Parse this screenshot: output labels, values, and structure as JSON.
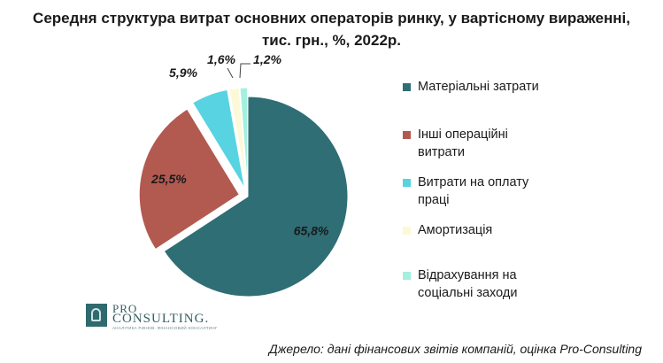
{
  "chart_data": {
    "type": "pie",
    "title_lines": [
      "Середня структура витрат основних операторів ринку, у вартісному вираженні,",
      "тис. грн., %, 2022р."
    ],
    "slices": [
      {
        "label": "Матеріальні затрати",
        "value": 65.8,
        "display": "65,8%",
        "color": "#2f6e75",
        "exploded": false
      },
      {
        "label": "Інші операційні витрати",
        "value": 25.5,
        "display": "25,5%",
        "color": "#b25a50",
        "exploded": true
      },
      {
        "label": "Витрати на оплату праці",
        "value": 5.9,
        "display": "5,9%",
        "color": "#57d3e2",
        "exploded": true
      },
      {
        "label": "Амортизація",
        "value": 1.6,
        "display": "1,6%",
        "color": "#fdf8d8",
        "exploded": true
      },
      {
        "label": "Відрахування на соціальні заходи",
        "value": 1.2,
        "display": "1,2%",
        "color": "#a3f0dd",
        "exploded": true
      }
    ],
    "legend_lines": [
      [
        "Матеріальні затрати"
      ],
      [
        "Інші операційні",
        "витрати"
      ],
      [
        "Витрати на оплату",
        "праці"
      ],
      [
        "Амортизація"
      ],
      [
        "Відрахування на",
        "соціальні заходи"
      ]
    ],
    "legend_position": "right",
    "start_angle_deg": 0,
    "direction": "clockwise"
  },
  "branding": {
    "logo_line1": "PRO",
    "logo_line2": "CONSULTING.",
    "logo_tagline": "АНАЛІТИКА РИНКІВ. ФІНАНСОВИЙ КОНСАЛТИНГ"
  },
  "footer": {
    "source": "Джерело: дані фінансових звітів  компаній, оцінка Pro-Consulting"
  }
}
